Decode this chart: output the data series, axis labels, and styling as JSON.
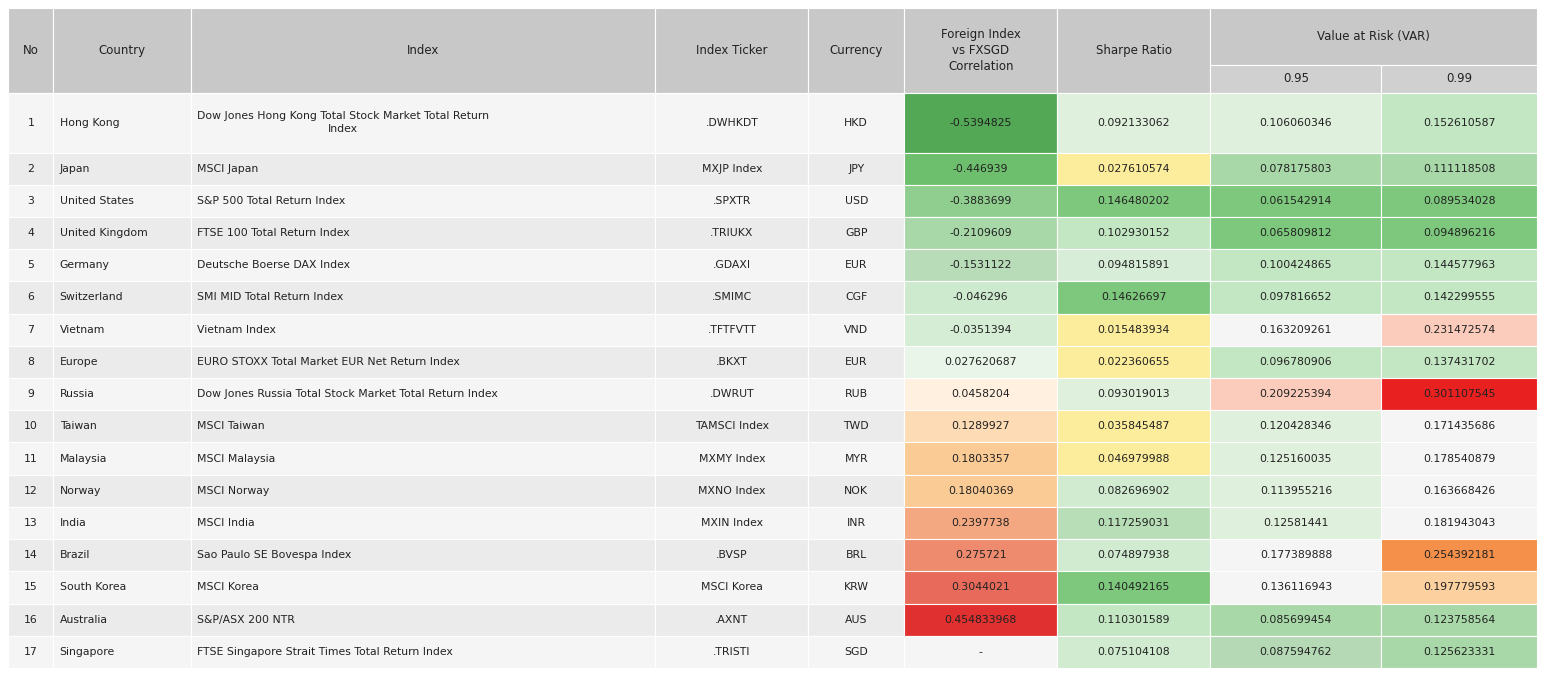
{
  "rows": [
    [
      1,
      "Hong Kong",
      "Dow Jones Hong Kong Total Stock Market Total Return Index",
      ".DWHKDT",
      "HKD",
      "-0.5394825",
      "0.092133062",
      "0.106060346",
      "0.152610587"
    ],
    [
      2,
      "Japan",
      "MSCI Japan",
      "MXJP Index",
      "JPY",
      "-0.446939",
      "0.027610574",
      "0.078175803",
      "0.111118508"
    ],
    [
      3,
      "United States",
      "S&P 500 Total Return Index",
      ".SPXTR",
      "USD",
      "-0.3883699",
      "0.146480202",
      "0.061542914",
      "0.089534028"
    ],
    [
      4,
      "United Kingdom",
      "FTSE 100 Total Return Index",
      ".TRIUKX",
      "GBP",
      "-0.2109609",
      "0.102930152",
      "0.065809812",
      "0.094896216"
    ],
    [
      5,
      "Germany",
      "Deutsche Boerse DAX Index",
      ".GDAXI",
      "EUR",
      "-0.1531122",
      "0.094815891",
      "0.100424865",
      "0.144577963"
    ],
    [
      6,
      "Switzerland",
      "SMI MID Total Return Index",
      ".SMIMC",
      "CGF",
      "-0.046296",
      "0.14626697",
      "0.097816652",
      "0.142299555"
    ],
    [
      7,
      "Vietnam",
      "Vietnam Index",
      ".TFTFVTT",
      "VND",
      "-0.0351394",
      "0.015483934",
      "0.163209261",
      "0.231472574"
    ],
    [
      8,
      "Europe",
      "EURO STOXX Total Market EUR Net Return Index",
      ".BKXT",
      "EUR",
      "0.027620687",
      "0.022360655",
      "0.096780906",
      "0.137431702"
    ],
    [
      9,
      "Russia",
      "Dow Jones Russia Total Stock Market Total Return Index",
      ".DWRUT",
      "RUB",
      "0.0458204",
      "0.093019013",
      "0.209225394",
      "0.301107545"
    ],
    [
      10,
      "Taiwan",
      "MSCI Taiwan",
      "TAMSCI Index",
      "TWD",
      "0.1289927",
      "0.035845487",
      "0.120428346",
      "0.171435686"
    ],
    [
      11,
      "Malaysia",
      "MSCI Malaysia",
      "MXMY Index",
      "MYR",
      "0.1803357",
      "0.046979988",
      "0.125160035",
      "0.178540879"
    ],
    [
      12,
      "Norway",
      "MSCI Norway",
      "MXNO Index",
      "NOK",
      "0.18040369",
      "0.082696902",
      "0.113955216",
      "0.163668426"
    ],
    [
      13,
      "India",
      "MSCI India",
      "MXIN Index",
      "INR",
      "0.2397738",
      "0.117259031",
      "0.12581441",
      "0.181943043"
    ],
    [
      14,
      "Brazil",
      "Sao Paulo SE Bovespa Index",
      ".BVSP",
      "BRL",
      "0.275721",
      "0.074897938",
      "0.177389888",
      "0.254392181"
    ],
    [
      15,
      "South Korea",
      "MSCI Korea",
      "MSCI Korea",
      "KRW",
      "0.3044021",
      "0.140492165",
      "0.136116943",
      "0.197779593"
    ],
    [
      16,
      "Australia",
      "S&P/ASX 200 NTR",
      ".AXNT",
      "AUS",
      "0.454833968",
      "0.110301589",
      "0.085699454",
      "0.123758564"
    ],
    [
      17,
      "Singapore",
      "FTSE Singapore Strait Times Total Return Index",
      ".TRISTI",
      "SGD",
      "-",
      "0.075104108",
      "0.087594762",
      "0.125623331"
    ]
  ],
  "corr_colors": {
    "-0.5394825": "#52A855",
    "-0.446939": "#6DBF6D",
    "-0.3883699": "#8FCE8F",
    "-0.2109609": "#A8D8A8",
    "-0.1531122": "#B8DCB8",
    "-0.046296": "#CEEACE",
    "-0.0351394": "#D4EDD4",
    "0.027620687": "#E8F5E8",
    "0.0458204": "#FFF0E0",
    "0.1289927": "#FDDCB5",
    "0.1803357": "#FBCB96",
    "0.18040369": "#FBCB96",
    "0.2397738": "#F4A882",
    "0.275721": "#EE8B6E",
    "0.3044021": "#E86A5A",
    "0.454833968": "#E03030",
    "-": "#F5F5F5"
  },
  "sharpe_colors": {
    "0.092133062": "#DFF0DC",
    "0.027610574": "#FCED9C",
    "0.146480202": "#7DC87D",
    "0.102930152": "#C3E6C3",
    "0.094815891": "#D8EDD8",
    "0.14626697": "#7DC87D",
    "0.015483934": "#FCED9C",
    "0.022360655": "#FCED9C",
    "0.093019013": "#DFF0DC",
    "0.035845487": "#FCED9C",
    "0.046979988": "#FCED9C",
    "0.082696902": "#D0EBD0",
    "0.117259031": "#B8DEB8",
    "0.074897938": "#D0EBD0",
    "0.140492165": "#7DC87D",
    "0.110301589": "#C3E6C3",
    "0.075104108": "#D0EBD0"
  },
  "var95_colors": {
    "0.106060346": "#DFF0DC",
    "0.078175803": "#A8D8A8",
    "0.061542914": "#7DC87D",
    "0.065809812": "#7DC87D",
    "0.100424865": "#C3E6C3",
    "0.097816652": "#C3E6C3",
    "0.163209261": "#F5F5F5",
    "0.096780906": "#C3E6C3",
    "0.209225394": "#FBCCBC",
    "0.120428346": "#DFF0DC",
    "0.125160035": "#DFF0DC",
    "0.113955216": "#DFF0DC",
    "0.12581441": "#DFF0DC",
    "0.177389888": "#F5F5F5",
    "0.136116943": "#F5F5F5",
    "0.085699454": "#A8D8A8",
    "0.087594762": "#B5D8B5"
  },
  "var99_colors": {
    "0.152610587": "#C3E6C3",
    "0.111118508": "#A8D8A8",
    "0.089534028": "#7DC87D",
    "0.094896216": "#7DC87D",
    "0.144577963": "#C3E6C3",
    "0.142299555": "#C3E6C3",
    "0.231472574": "#FBCCBC",
    "0.137431702": "#C3E6C3",
    "0.301107545": "#E82020",
    "0.171435686": "#F5F5F5",
    "0.178540879": "#F5F5F5",
    "0.163668426": "#F5F5F5",
    "0.181943043": "#F5F5F5",
    "0.254392181": "#F4904A",
    "0.197779593": "#FDD0A0",
    "0.123758564": "#A8D8A8",
    "0.125623331": "#A8D8A8"
  },
  "header_bg": "#C8C8C8",
  "subheader_bg": "#D0D0D0",
  "row_bg_even": "#EBEBEB",
  "row_bg_odd": "#F5F5F5",
  "figsize": [
    15.45,
    6.76
  ],
  "dpi": 100
}
